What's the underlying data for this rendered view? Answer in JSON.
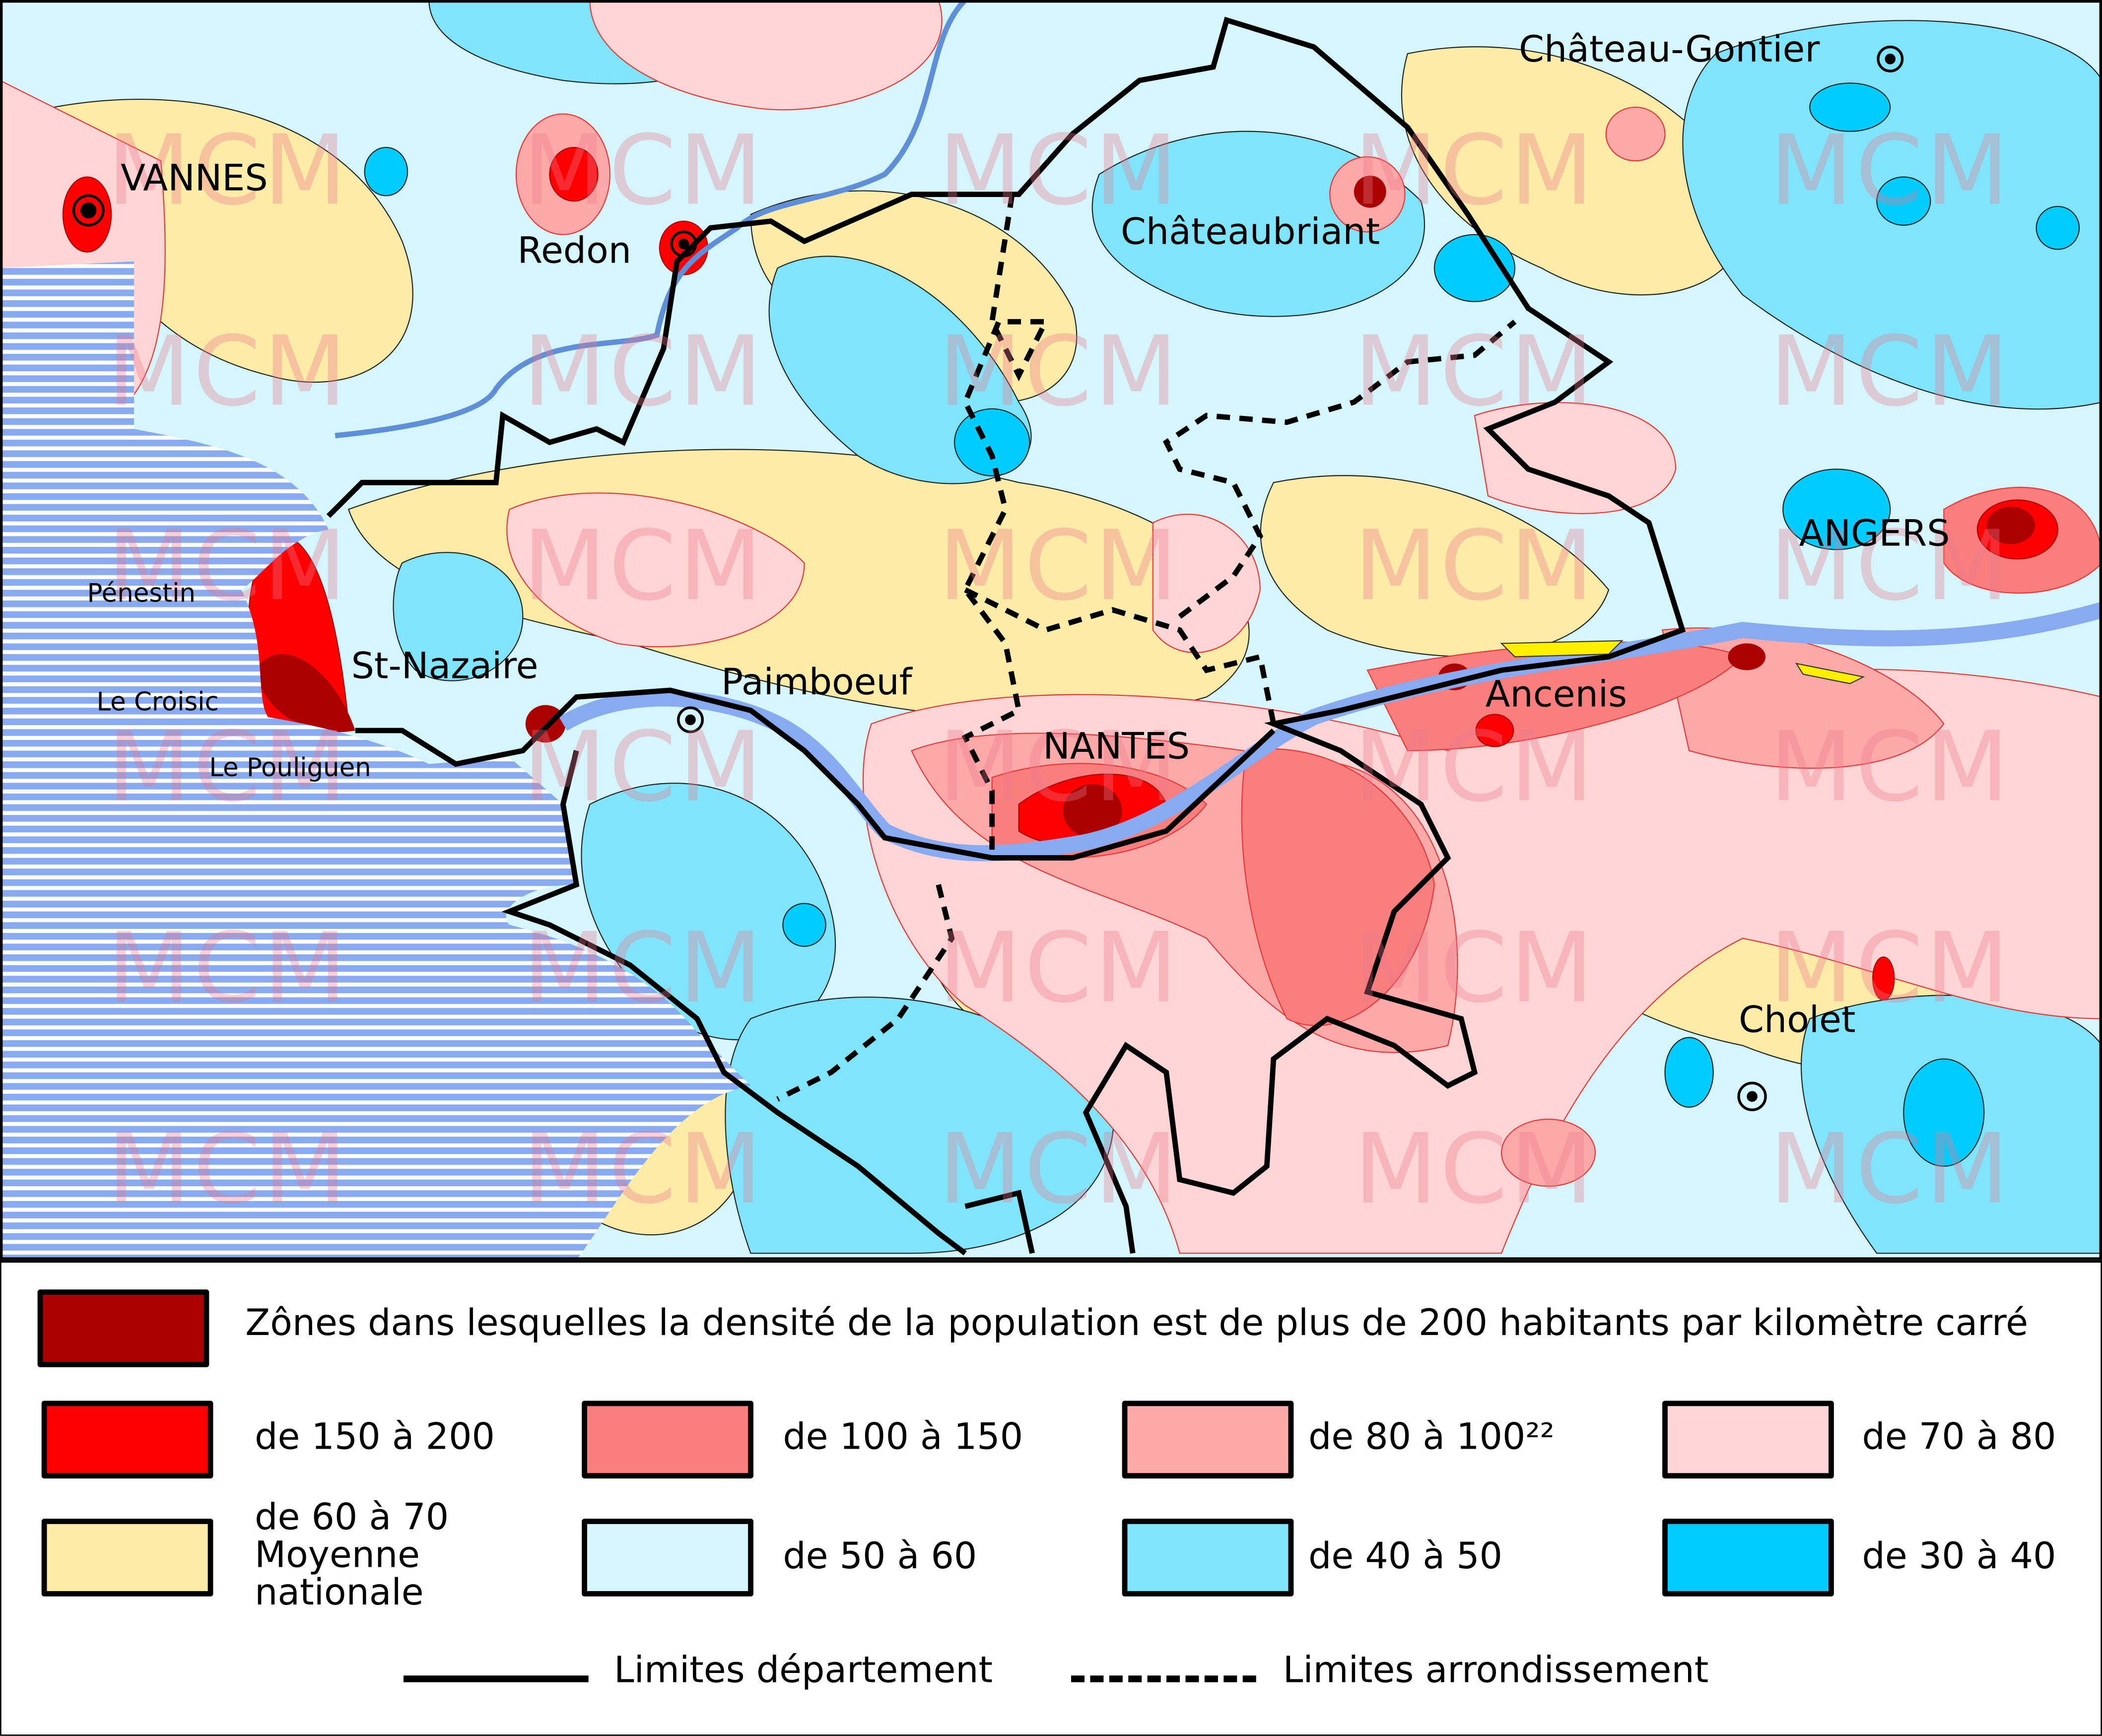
{
  "towns": {
    "vannes": "VANNES",
    "redon": "Redon",
    "chateau_gontier": "Château-Gontier",
    "chateaubriant": "Châteaubriant",
    "angers": "ANGERS",
    "penestin": "Pénestin",
    "le_croisic": "Le Croisic",
    "le_pouliguen": "Le Pouliguen",
    "st_nazaire": "St-Nazaire",
    "paimboeuf": "Paimboeuf",
    "nantes": "NANTES",
    "ancenis": "Ancenis",
    "cholet": "Cholet"
  },
  "watermark": "MCM",
  "legend": {
    "top": {
      "label": "Zônes dans lesquelles la densité de la population est de plus de 200 habitants par kilomètre carré",
      "color": "#aa0000"
    },
    "classes": [
      {
        "label": "de 150 à 200",
        "color": "#ff0000"
      },
      {
        "label": "de 100 à 150",
        "color": "#f97f7f"
      },
      {
        "label": "de 80 à 100²²",
        "color": "#fda9a9"
      },
      {
        "label": "de 70 à 80",
        "color": "#ffd5d5"
      },
      {
        "label": "de 60 à 70",
        "label2": "Moyenne",
        "label3": "nationale",
        "color": "#fdeba8"
      },
      {
        "label": "de 50 à 60",
        "color": "#d5f6fc"
      },
      {
        "label": "de 40 à 50",
        "color": "#80e5fc"
      },
      {
        "label": "de 30 à 40",
        "color": "#00ccff"
      }
    ],
    "dept_limits": "Limites département",
    "arr_limits": "Limites arrondissement"
  },
  "colors": {
    "sea": "#87aaf0",
    "river": "#5f8fd8"
  }
}
